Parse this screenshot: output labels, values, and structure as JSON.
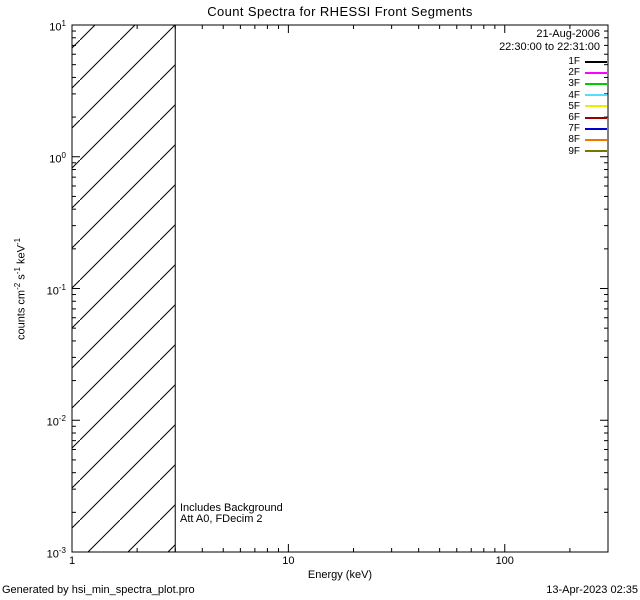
{
  "title": "Count Spectra for RHESSI Front Segments",
  "legend": {
    "date": "21-Aug-2006",
    "time_range": "22:30:00 to 22:31:00",
    "entries": [
      {
        "label": "1F",
        "color": "#000000"
      },
      {
        "label": "2F",
        "color": "#ff00ff"
      },
      {
        "label": "3F",
        "color": "#00cc00"
      },
      {
        "label": "4F",
        "color": "#55ddff"
      },
      {
        "label": "5F",
        "color": "#eded00"
      },
      {
        "label": "6F",
        "color": "#990000"
      },
      {
        "label": "7F",
        "color": "#0000cc"
      },
      {
        "label": "8F",
        "color": "#ee7700"
      },
      {
        "label": "9F",
        "color": "#777700"
      }
    ]
  },
  "annotations": {
    "line1": "Includes Background",
    "line2": "Att A0, FDecim 2"
  },
  "footer": {
    "generated_by": "Generated by hsi_min_spectra_plot.pro",
    "timestamp": "13-Apr-2023 02:35"
  },
  "chart_data": {
    "type": "line",
    "title": "Count Spectra for RHESSI Front Segments",
    "xlabel": "Energy (keV)",
    "ylabel": "counts cm^-2 s^-1 keV^-1",
    "xscale": "log",
    "yscale": "log",
    "xlim": [
      1,
      300
    ],
    "ylim": [
      0.001,
      10
    ],
    "grid": false,
    "legend_position": "top-right",
    "x_ticks": {
      "values": [
        1,
        10,
        100
      ],
      "labels": [
        "1",
        "10",
        "100"
      ]
    },
    "y_ticks": {
      "values": [
        10,
        1,
        0.1,
        0.01,
        0.001
      ],
      "labels": [
        "10^1",
        "10^0",
        "10^-1",
        "10^-2",
        "10^-3"
      ]
    },
    "hatched_region": {
      "x_start": 1,
      "x_end": 3,
      "style": "diagonal-hatch"
    },
    "series": [
      {
        "name": "1F",
        "color": "#000000",
        "values": []
      },
      {
        "name": "2F",
        "color": "#ff00ff",
        "values": []
      },
      {
        "name": "3F",
        "color": "#00cc00",
        "values": []
      },
      {
        "name": "4F",
        "color": "#55ddff",
        "values": []
      },
      {
        "name": "5F",
        "color": "#eded00",
        "values": []
      },
      {
        "name": "6F",
        "color": "#990000",
        "values": []
      },
      {
        "name": "7F",
        "color": "#0000cc",
        "values": []
      },
      {
        "name": "8F",
        "color": "#ee7700",
        "values": []
      },
      {
        "name": "9F",
        "color": "#777700",
        "values": []
      }
    ]
  }
}
